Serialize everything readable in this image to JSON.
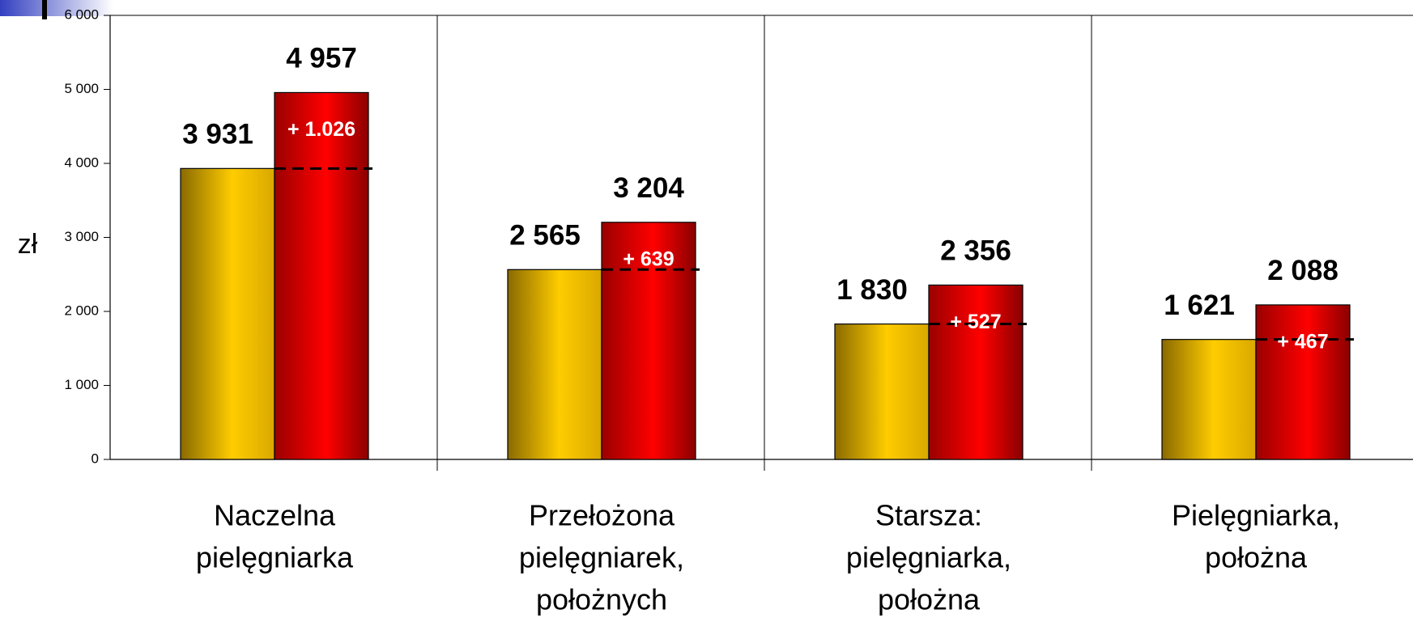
{
  "chart_data": {
    "type": "bar",
    "y_label": "zł",
    "categories": [
      [
        "Naczelna",
        "pielęgniarka"
      ],
      [
        "Przełożona",
        "pielęgniarek,",
        "położnych"
      ],
      [
        "Starsza:",
        "pielęgniarka,",
        "położna"
      ],
      [
        "Pielęgniarka,",
        "położna"
      ]
    ],
    "series": [
      {
        "color": "#f2c200",
        "values": [
          3931,
          2565,
          1830,
          1621
        ],
        "value_labels": [
          "3 931",
          "2 565",
          "1 830",
          "1 621"
        ]
      },
      {
        "color": "#e60000",
        "values": [
          4957,
          3204,
          2356,
          2088
        ],
        "value_labels": [
          "4 957",
          "3 204",
          "2 356",
          "2 088"
        ]
      }
    ],
    "annotations": [
      {
        "value": 1026,
        "label": "+ 1.026"
      },
      {
        "value": 639,
        "label": "+ 639"
      },
      {
        "value": 527,
        "label": "+ 527"
      },
      {
        "value": 467,
        "label": "+ 467"
      }
    ],
    "ylim": [
      0,
      6000
    ],
    "yticks": [
      0,
      {
        "value": 1000,
        "label": "1 000"
      },
      {
        "value": 2000,
        "label": "2 000"
      },
      {
        "value": 3000,
        "label": "3 000"
      },
      {
        "value": 4000,
        "label": "4 000"
      },
      {
        "value": 5000,
        "label": "5 000"
      },
      {
        "value": 6000,
        "label": "6 000"
      }
    ]
  }
}
